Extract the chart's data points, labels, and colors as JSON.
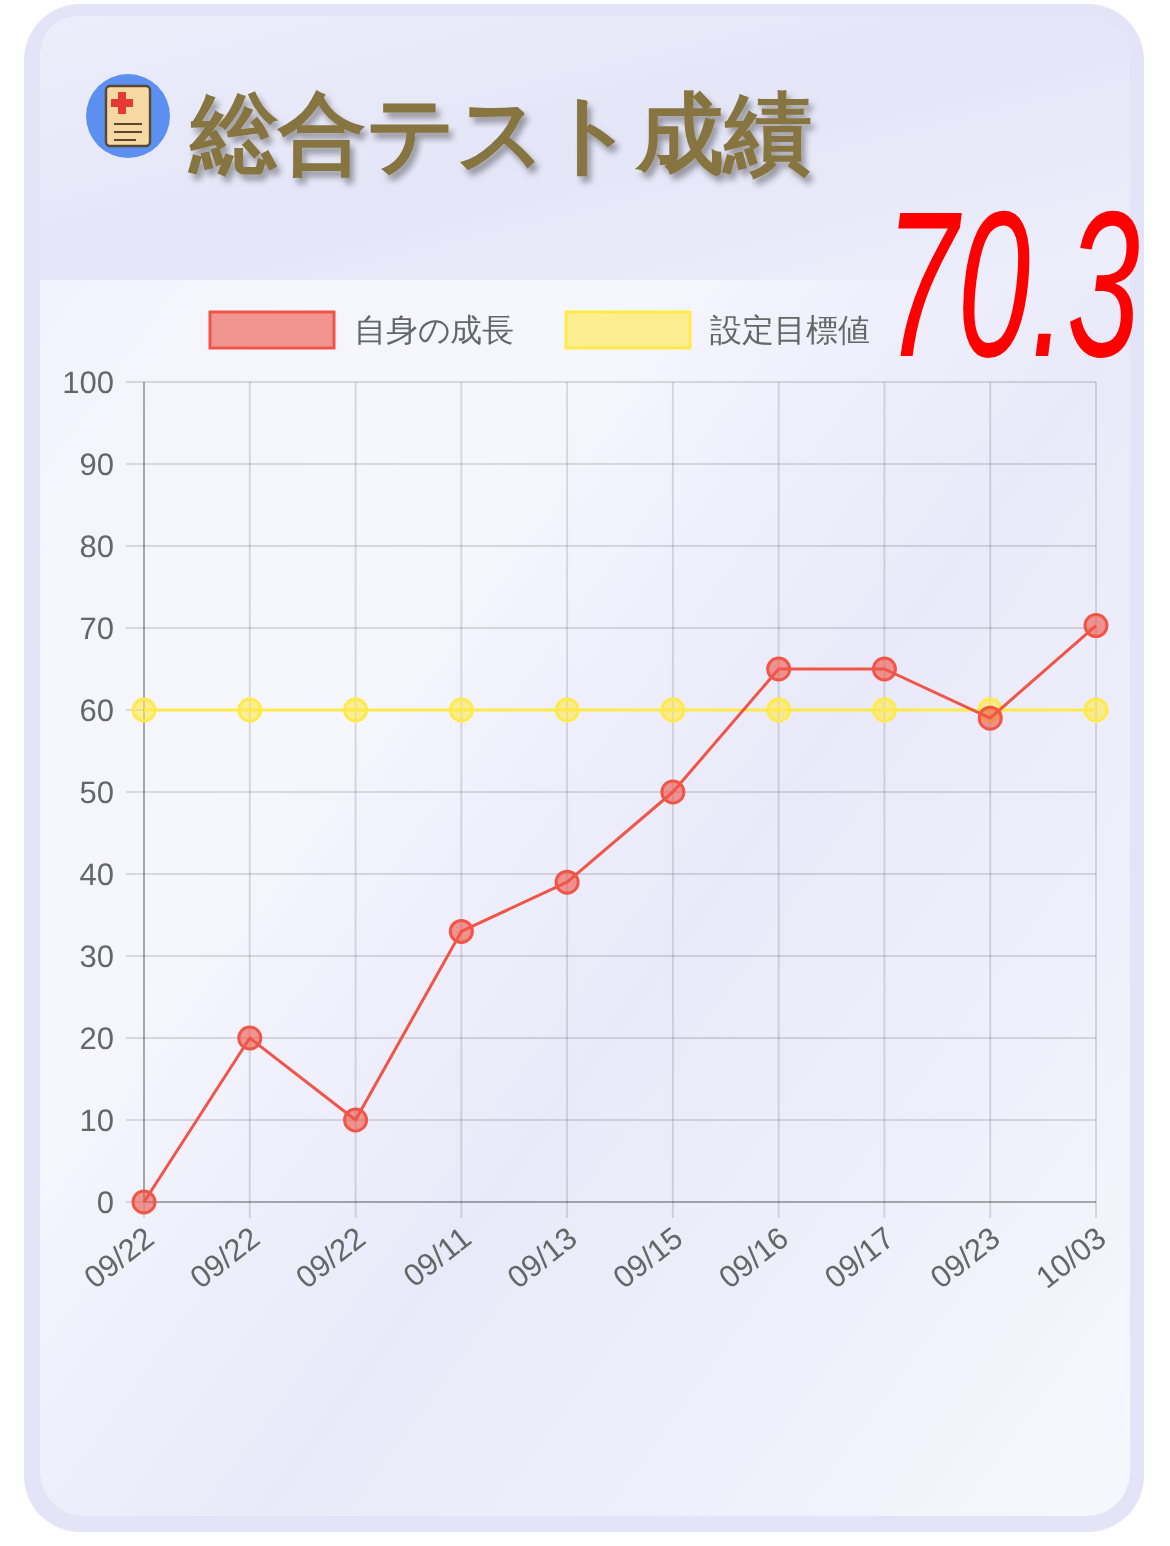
{
  "chart_data": {
    "type": "line",
    "title": "総合テスト成績",
    "categories": [
      "09/22",
      "09/22",
      "09/22",
      "09/11",
      "09/13",
      "09/15",
      "09/16",
      "09/17",
      "09/23",
      "10/03"
    ],
    "series": [
      {
        "name": "自身の成長",
        "color": "#f05548",
        "values": [
          0,
          20,
          10,
          33,
          39,
          50,
          65,
          65,
          59,
          70.3
        ]
      },
      {
        "name": "設定目標値",
        "color": "#ffea4a",
        "values": [
          60,
          60,
          60,
          60,
          60,
          60,
          60,
          60,
          60,
          60
        ]
      }
    ],
    "ylim": [
      0,
      100
    ],
    "yticks": [
      0,
      10,
      20,
      30,
      40,
      50,
      60,
      70,
      80,
      90,
      100
    ],
    "grid": true,
    "legend": "top",
    "marker": "circle",
    "line_style": "solid",
    "annotations": [
      "70.3"
    ]
  }
}
